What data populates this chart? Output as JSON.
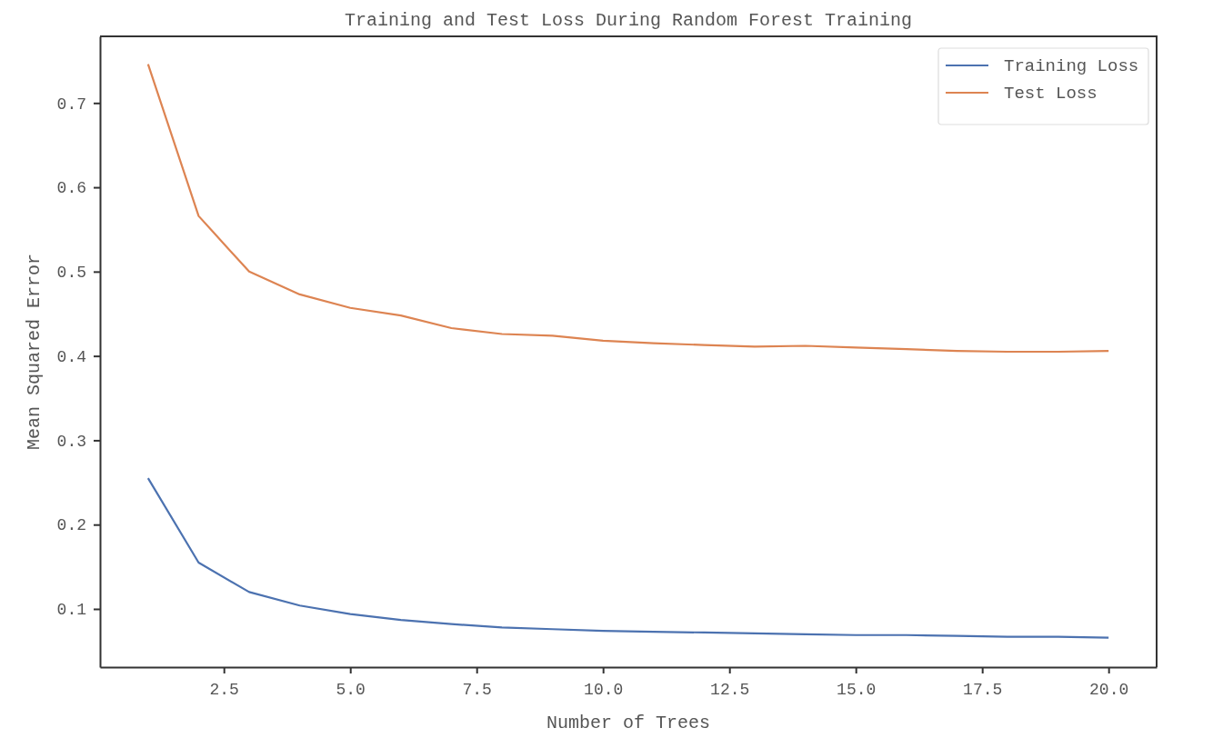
{
  "chart_data": {
    "type": "line",
    "title": "Training and Test Loss During Random Forest Training",
    "xlabel": "Number of Trees",
    "ylabel": "Mean Squared Error",
    "x": [
      1,
      2,
      3,
      4,
      5,
      6,
      7,
      8,
      9,
      10,
      11,
      12,
      13,
      14,
      15,
      16,
      17,
      18,
      19,
      20
    ],
    "series": [
      {
        "name": "Training Loss",
        "color": "#4c72b0",
        "values": [
          0.255,
          0.155,
          0.12,
          0.104,
          0.094,
          0.087,
          0.082,
          0.078,
          0.076,
          0.074,
          0.073,
          0.072,
          0.071,
          0.07,
          0.069,
          0.069,
          0.068,
          0.067,
          0.067,
          0.066
        ]
      },
      {
        "name": "Test Loss",
        "color": "#dd8452",
        "values": [
          0.746,
          0.566,
          0.5,
          0.473,
          0.457,
          0.448,
          0.433,
          0.426,
          0.424,
          0.418,
          0.415,
          0.413,
          0.411,
          0.412,
          0.41,
          0.408,
          0.406,
          0.405,
          0.405,
          0.406
        ]
      }
    ],
    "xlim": [
      0.05,
      20.95
    ],
    "ylim": [
      0.031,
      0.779
    ],
    "xticks": [
      2.5,
      {
        "value": 5,
        "label": "5.0"
      },
      7.5,
      {
        "value": 10,
        "label": "10.0"
      },
      12.5,
      {
        "value": 15,
        "label": "15.0"
      },
      17.5,
      {
        "value": 20,
        "label": "20.0"
      }
    ],
    "yticks": [
      0.1,
      0.2,
      0.3,
      0.4,
      0.5,
      0.6,
      0.7
    ],
    "grid": false,
    "legend": "top right",
    "marker": "none",
    "line_style": "solid"
  }
}
